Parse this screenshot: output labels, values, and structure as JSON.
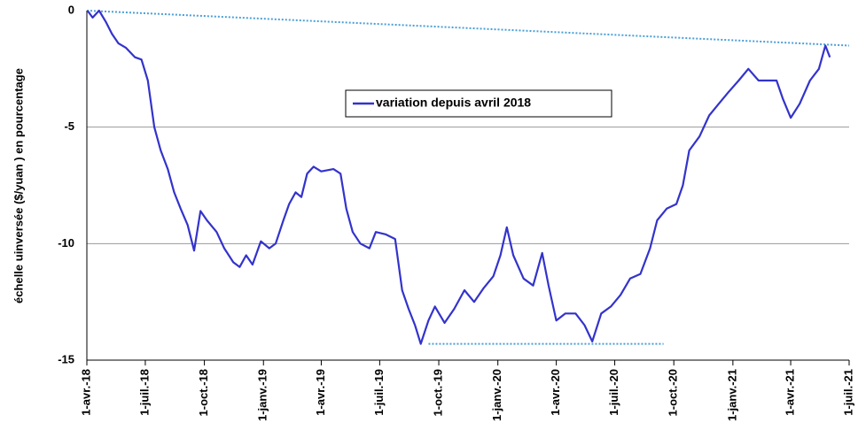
{
  "chart_data": {
    "type": "line",
    "ylabel": "échelle uinversée ($/yuan ) en pourcentage",
    "x": [
      "2018-04-02",
      "2018-04-10",
      "2018-04-20",
      "2018-05-01",
      "2018-05-10",
      "2018-05-20",
      "2018-06-01",
      "2018-06-15",
      "2018-06-25",
      "2018-07-05",
      "2018-07-15",
      "2018-07-25",
      "2018-08-05",
      "2018-08-15",
      "2018-08-25",
      "2018-09-05",
      "2018-09-15",
      "2018-09-25",
      "2018-10-05",
      "2018-10-20",
      "2018-11-01",
      "2018-11-15",
      "2018-11-25",
      "2018-12-05",
      "2018-12-15",
      "2018-12-28",
      "2019-01-10",
      "2019-01-20",
      "2019-02-01",
      "2019-02-10",
      "2019-02-20",
      "2019-03-01",
      "2019-03-10",
      "2019-03-20",
      "2019-04-01",
      "2019-04-20",
      "2019-05-01",
      "2019-05-10",
      "2019-05-20",
      "2019-06-01",
      "2019-06-15",
      "2019-06-25",
      "2019-07-10",
      "2019-07-25",
      "2019-08-05",
      "2019-08-15",
      "2019-08-25",
      "2019-09-03",
      "2019-09-15",
      "2019-09-25",
      "2019-10-10",
      "2019-10-25",
      "2019-11-10",
      "2019-11-25",
      "2019-12-10",
      "2019-12-25",
      "2020-01-05",
      "2020-01-15",
      "2020-01-25",
      "2020-02-10",
      "2020-02-25",
      "2020-03-10",
      "2020-03-20",
      "2020-04-01",
      "2020-04-15",
      "2020-05-01",
      "2020-05-15",
      "2020-05-27",
      "2020-06-10",
      "2020-06-25",
      "2020-07-10",
      "2020-07-25",
      "2020-08-10",
      "2020-08-25",
      "2020-09-05",
      "2020-09-20",
      "2020-10-05",
      "2020-10-15",
      "2020-10-25",
      "2020-11-10",
      "2020-11-25",
      "2020-12-10",
      "2020-12-25",
      "2021-01-10",
      "2021-01-25",
      "2021-02-10",
      "2021-02-25",
      "2021-03-10",
      "2021-03-20",
      "2021-04-01",
      "2021-04-15",
      "2021-05-01",
      "2021-05-15",
      "2021-05-25",
      "2021-06-01"
    ],
    "series": [
      {
        "name": "variation depuis avril 2018",
        "color": "#3333cc",
        "values": [
          0,
          -0.3,
          0,
          -0.5,
          -1.0,
          -1.4,
          -1.6,
          -2.0,
          -2.1,
          -3.0,
          -5.0,
          -6.0,
          -6.8,
          -7.8,
          -8.5,
          -9.2,
          -10.3,
          -8.6,
          -9.0,
          -9.5,
          -10.2,
          -10.8,
          -11.0,
          -10.5,
          -10.9,
          -9.9,
          -10.2,
          -10.0,
          -9.0,
          -8.3,
          -7.8,
          -8.0,
          -7.0,
          -6.7,
          -6.9,
          -6.8,
          -7.0,
          -8.5,
          -9.5,
          -10.0,
          -10.2,
          -9.5,
          -9.6,
          -9.8,
          -12.0,
          -12.8,
          -13.5,
          -14.3,
          -13.3,
          -12.7,
          -13.4,
          -12.8,
          -12.0,
          -12.5,
          -11.9,
          -11.4,
          -10.5,
          -9.3,
          -10.5,
          -11.5,
          -11.8,
          -10.4,
          -11.8,
          -13.3,
          -13.0,
          -13.0,
          -13.5,
          -14.2,
          -13.0,
          -12.7,
          -12.2,
          -11.5,
          -11.3,
          -10.2,
          -9.0,
          -8.5,
          -8.3,
          -7.5,
          -6.0,
          -5.4,
          -4.5,
          -4.0,
          -3.5,
          -3.0,
          -2.5,
          -3.0,
          -3.0,
          -3.0,
          -3.8,
          -4.6,
          -4.0,
          -3.0,
          -2.5,
          -1.5,
          -2.0
        ]
      }
    ],
    "reference_lines": [
      {
        "x": [
          "2018-04-01",
          "2021-07-01"
        ],
        "y": [
          0,
          -1.5
        ],
        "color": "#4a9fd8"
      },
      {
        "x": [
          "2019-09-15",
          "2020-09-15"
        ],
        "y": [
          -14.3,
          -14.3
        ],
        "color": "#4a9fd8"
      }
    ],
    "xlim": [
      "2018-04-01",
      "2021-07-01"
    ],
    "xticks": [
      {
        "value": "2018-04-01",
        "label": "1-avr.-18"
      },
      {
        "value": "2018-07-01",
        "label": "1-juil.-18"
      },
      {
        "value": "2018-10-01",
        "label": "1-oct.-18"
      },
      {
        "value": "2019-01-01",
        "label": "1-janv.-19"
      },
      {
        "value": "2019-04-01",
        "label": "1-avr.-19"
      },
      {
        "value": "2019-07-01",
        "label": "1-juil.-19"
      },
      {
        "value": "2019-10-01",
        "label": "1-oct.-19"
      },
      {
        "value": "2020-01-01",
        "label": "1-janv.-20"
      },
      {
        "value": "2020-04-01",
        "label": "1-avr.-20"
      },
      {
        "value": "2020-07-01",
        "label": "1-juil.-20"
      },
      {
        "value": "2020-10-01",
        "label": "1-oct.-20"
      },
      {
        "value": "2021-01-01",
        "label": "1-janv.-21"
      },
      {
        "value": "2021-04-01",
        "label": "1-avr.-21"
      },
      {
        "value": "2021-07-01",
        "label": "1-juil.-21"
      }
    ],
    "ylim": [
      -15,
      0
    ],
    "yticks": [
      0,
      -5,
      -10,
      -15
    ],
    "grid": true,
    "legend": "top"
  }
}
